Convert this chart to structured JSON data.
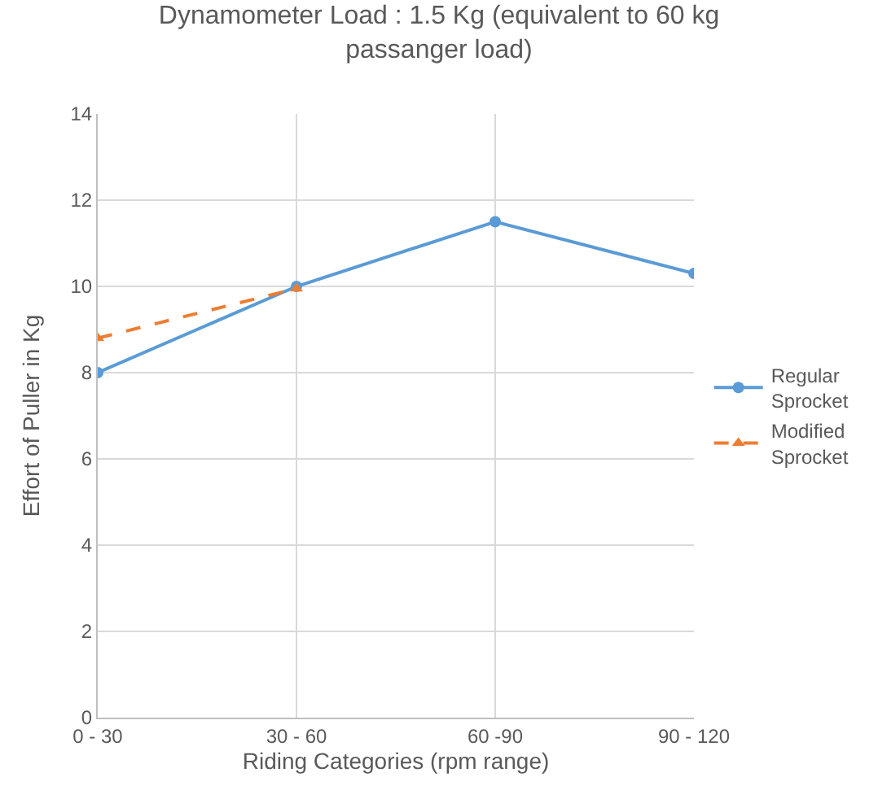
{
  "chart_data": {
    "type": "line",
    "title": "Dynamometer Load : 1.5 Kg (equivalent to 60 kg passanger load)",
    "xlabel": "Riding Categories (rpm range)",
    "ylabel": "Effort of Puller in Kg",
    "categories": [
      "0 - 30",
      "30 - 60",
      "60 -90",
      "90 - 120"
    ],
    "series": [
      {
        "name": "Regular Sprocket",
        "color": "#5b9bd5",
        "values": [
          8.0,
          10.0,
          11.5,
          10.3
        ],
        "marker": "circle",
        "line_style": "solid"
      },
      {
        "name": "Modified Sprocket",
        "color": "#ed7d31",
        "values": [
          8.8,
          9.95,
          null,
          null
        ],
        "marker": "triangle",
        "line_style": "dashed"
      }
    ],
    "ylim": [
      0,
      14
    ],
    "yticks": [
      0,
      2,
      4,
      6,
      8,
      10,
      12,
      14
    ],
    "grid": true,
    "legend": "right"
  }
}
